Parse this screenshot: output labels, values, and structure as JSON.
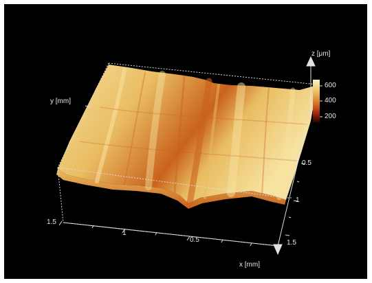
{
  "axes": {
    "x": {
      "label": "x [mm]",
      "ticks": [
        "1.5",
        "1",
        "0.5"
      ]
    },
    "y": {
      "label": "y [mm]",
      "ticks": [
        "0.5",
        "1",
        "1.5"
      ]
    },
    "z": {
      "label": "z [μm]"
    }
  },
  "colorbar": {
    "ticks": [
      "600",
      "400",
      "200"
    ],
    "colors": [
      "#fbf3c8",
      "#f1c56a",
      "#d9762a",
      "#a02210",
      "#2a0400"
    ]
  },
  "surface": {
    "base_color": "#e9bc62",
    "highlight_color": "#f7e2a0",
    "valley_color": "#c9621c"
  }
}
